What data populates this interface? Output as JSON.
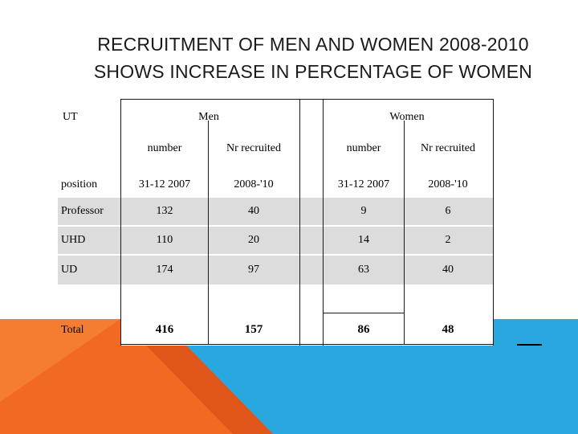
{
  "title": {
    "line1": "RECRUITMENT OF MEN AND WOMEN 2008-2010",
    "line2": "SHOWS INCREASE IN PERCENTAGE OF WOMEN"
  },
  "table": {
    "corner_label": "UT",
    "groups": {
      "men": "Men",
      "women": "Women"
    },
    "subheaders": {
      "men_number": "number",
      "men_recruited": "Nr recruited",
      "women_number": "number",
      "women_recruited": "Nr recruited"
    },
    "position_label": "position",
    "periods": {
      "men_number": "31-12 2007",
      "men_recruited": "2008-'10",
      "women_number": "31-12 2007",
      "women_recruited": "2008-'10"
    },
    "rows": [
      {
        "label": "Professor",
        "men_number": "132",
        "men_recruited": "40",
        "women_number": "9",
        "women_recruited": "6"
      },
      {
        "label": "UHD",
        "men_number": "110",
        "men_recruited": "20",
        "women_number": "14",
        "women_recruited": "2"
      },
      {
        "label": "UD",
        "men_number": "174",
        "men_recruited": "97",
        "women_number": "63",
        "women_recruited": "40"
      }
    ],
    "total": {
      "label": "Total",
      "men_number": "416",
      "men_recruited": "157",
      "women_number": "86",
      "women_recruited": "48"
    }
  },
  "colors": {
    "accent_orange": "#f26a21",
    "accent_blue": "#29a8e0",
    "row_gray": "#dcdcdc"
  }
}
